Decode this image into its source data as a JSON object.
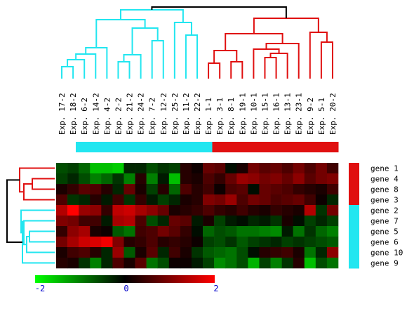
{
  "chart_data": {
    "type": "heatmap",
    "title": "",
    "xlabel": "",
    "ylabel": "",
    "columns": [
      "Exp. 17-2",
      "Exp. 18-2",
      "Exp. 6-2",
      "Exp. 14-2",
      "Exp. 4-2",
      "Exp. 2-2",
      "Exp. 21-2",
      "Exp. 24-2",
      "Exp. 7-2",
      "Exp. 12-2",
      "Exp. 25-2",
      "Exp. 11-2",
      "Exp. 22-2",
      "Exp. 1-1",
      "Exp. 3-1",
      "Exp. 8-1",
      "Exp. 19-1",
      "Exp. 10-1",
      "Exp. 15-1",
      "Exp. 16-1",
      "Exp. 13-1",
      "Exp. 23-1",
      "Exp. 9-2",
      "Exp. 5-1",
      "Exp. 20-2"
    ],
    "rows": [
      "gene 1",
      "gene 4",
      "gene 8",
      "gene 3",
      "gene 2",
      "gene 7",
      "gene 5",
      "gene 6",
      "gene 10",
      "gene 9"
    ],
    "values": [
      [
        -0.6,
        -0.5,
        -0.8,
        -1.5,
        -1.5,
        -1.6,
        -0.3,
        -0.3,
        -0.6,
        -0.4,
        -0.5,
        0.3,
        0.1,
        0.8,
        0.7,
        -0.1,
        0.2,
        0.9,
        0.7,
        0.8,
        0.6,
        0.9,
        0.6,
        0.9,
        0.5
      ],
      [
        -0.5,
        -0.3,
        -0.6,
        -1.0,
        -0.8,
        -0.4,
        -1.0,
        0.3,
        -1.0,
        -0.2,
        -1.5,
        0.3,
        0.2,
        0.6,
        0.4,
        0.8,
        1.2,
        1.1,
        0.9,
        1.0,
        0.8,
        1.1,
        0.7,
        0.9,
        1.0
      ],
      [
        0.2,
        0.4,
        0.7,
        0.6,
        0.3,
        -0.3,
        0.8,
        0.2,
        -0.5,
        0.3,
        -0.8,
        0.6,
        0.3,
        0.5,
        0.1,
        0.6,
        0.7,
        -0.1,
        0.8,
        0.7,
        0.6,
        0.4,
        0.3,
        0.2,
        0.5
      ],
      [
        0.6,
        -0.4,
        -0.3,
        0.3,
        -0.2,
        0.5,
        -0.4,
        0.4,
        -0.2,
        -0.5,
        -0.3,
        0.2,
        0.3,
        1.0,
        0.9,
        1.2,
        0.6,
        0.9,
        0.8,
        0.6,
        0.7,
        0.8,
        0.5,
        0.1,
        -0.3
      ],
      [
        1.4,
        2.0,
        1.2,
        1.1,
        0.4,
        1.5,
        1.6,
        1.3,
        1.1,
        0.8,
        0.2,
        0.3,
        0.4,
        0.6,
        0.4,
        0.3,
        0.5,
        0.3,
        0.2,
        0.4,
        0.3,
        0.2,
        1.4,
        -0.4,
        0.9
      ],
      [
        1.0,
        0.9,
        0.5,
        0.5,
        -0.2,
        1.3,
        1.4,
        0.6,
        -0.6,
        -0.3,
        0.8,
        0.7,
        -0.2,
        0.2,
        -0.5,
        -0.2,
        -0.1,
        -0.3,
        -0.2,
        -0.4,
        0.2,
        -0.1,
        -0.5,
        -0.3,
        -0.5
      ],
      [
        0.4,
        1.1,
        1.3,
        0.2,
        0.1,
        -0.7,
        -0.9,
        0.5,
        0.6,
        0.9,
        0.7,
        0.4,
        -0.1,
        -0.8,
        -0.6,
        -0.7,
        -0.9,
        -0.9,
        -1.0,
        -1.1,
        -0.2,
        -0.9,
        -0.4,
        -0.8,
        -1.0
      ],
      [
        0.9,
        1.3,
        1.6,
        1.7,
        1.9,
        1.0,
        0.3,
        0.4,
        0.6,
        0.3,
        0.4,
        0.3,
        0.1,
        -0.5,
        -0.6,
        -0.4,
        -0.7,
        -0.5,
        -0.4,
        -0.3,
        -0.5,
        -0.4,
        -0.5,
        -0.6,
        -0.7
      ],
      [
        0.2,
        0.5,
        0.6,
        0.3,
        -0.3,
        1.2,
        -0.7,
        0.2,
        0.7,
        -0.3,
        0.5,
        0.2,
        -0.4,
        -0.7,
        -0.8,
        -0.9,
        -0.6,
        -0.1,
        0.3,
        0.4,
        0.5,
        0.2,
        -0.9,
        -0.3,
        1.1
      ],
      [
        0.3,
        0.2,
        -0.4,
        -1.0,
        -0.3,
        0.6,
        0.2,
        0.7,
        -0.9,
        -0.6,
        0.1,
        0.1,
        -0.2,
        -0.5,
        -1.1,
        -0.9,
        -0.6,
        -1.4,
        -0.5,
        -1.0,
        -0.4,
        0.3,
        -1.5,
        -0.6,
        -0.9
      ]
    ],
    "column_groups": [
      "cyan",
      "cyan",
      "cyan",
      "cyan",
      "cyan",
      "cyan",
      "cyan",
      "cyan",
      "cyan",
      "cyan",
      "cyan",
      "cyan",
      "cyan",
      "red",
      "red",
      "red",
      "red",
      "red",
      "red",
      "red",
      "red",
      "red",
      "red",
      "red",
      "red"
    ],
    "row_groups": [
      "red",
      "red",
      "red",
      "red",
      "cyan",
      "cyan",
      "cyan",
      "cyan",
      "cyan",
      "cyan"
    ],
    "colorscale": {
      "min": -2,
      "mid": 0,
      "max": 2,
      "low_color": "#00ff00",
      "mid_color": "#000000",
      "high_color": "#ff0000"
    },
    "colorbar_ticks": [
      "-2",
      "0",
      "2"
    ],
    "legend": "none",
    "grid": false
  },
  "colors": {
    "cyan": "#22e6f0",
    "red": "#e01010",
    "black": "#000000",
    "tick_text": "#0000cc"
  }
}
